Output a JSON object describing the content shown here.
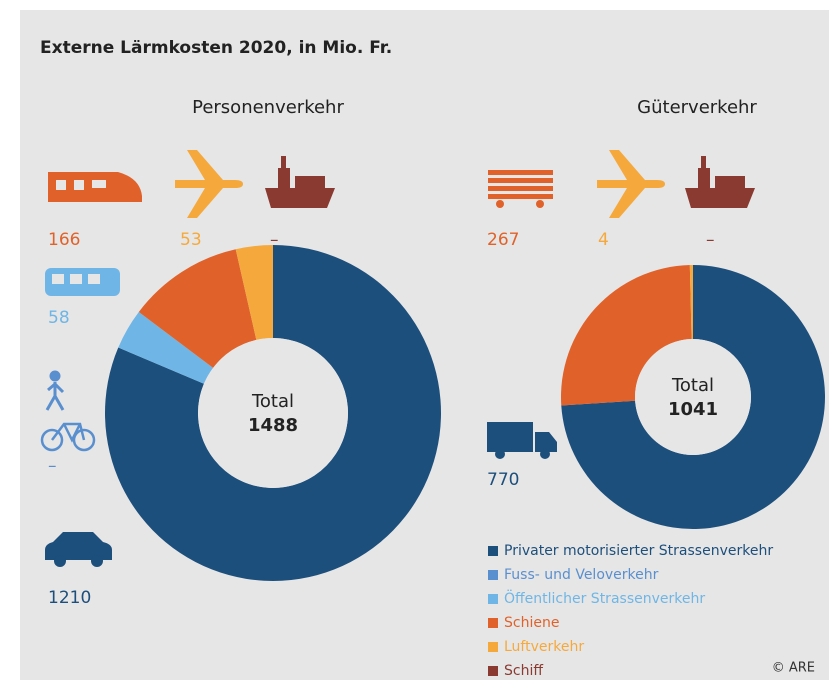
{
  "title": "Externe Lärmkosten 2020, in Mio. Fr.",
  "credit": "© ARE",
  "chart_data": [
    {
      "type": "pie",
      "title": "Personenverkehr",
      "categories": [
        "Privater motorisierter Strassenverkehr",
        "Fuss- und Veloverkehr",
        "Öffentlicher Strassenverkehr",
        "Schiene",
        "Luftverkehr",
        "Schiff"
      ],
      "colors": [
        "#1d4f7c",
        "#5a8fcf",
        "#6fb6e6",
        "#e0622a",
        "#f5a93c",
        "#8a3a30"
      ],
      "values": [
        1210,
        null,
        58,
        166,
        53,
        null
      ],
      "value_labels": [
        "1210",
        "–",
        "58",
        "166",
        "53",
        "–"
      ],
      "center_label": "Total",
      "total": 1488
    },
    {
      "type": "pie",
      "title": "Güterverkehr",
      "categories": [
        "Privater motorisierter Strassenverkehr",
        "Schiene",
        "Luftverkehr",
        "Schiff"
      ],
      "colors": [
        "#1d4f7c",
        "#e0622a",
        "#f5a93c",
        "#8a3a30"
      ],
      "values": [
        770,
        267,
        4,
        null
      ],
      "value_labels": [
        "770",
        "267",
        "4",
        "–"
      ],
      "center_label": "Total",
      "total": 1041
    }
  ]
}
